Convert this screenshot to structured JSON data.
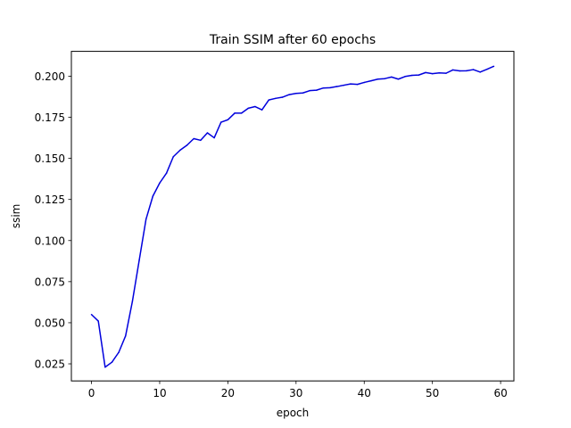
{
  "chart_data": {
    "type": "line",
    "title": "Train SSIM after 60 epochs",
    "xlabel": "epoch",
    "ylabel": "ssim",
    "xlim": [
      -2.95,
      61.95
    ],
    "ylim": [
      0.0146,
      0.2151
    ],
    "x_ticks": [
      0,
      10,
      20,
      30,
      40,
      50,
      60
    ],
    "y_ticks": [
      0.025,
      0.05,
      0.075,
      0.1,
      0.125,
      0.15,
      0.175,
      0.2
    ],
    "y_tick_labels": [
      "0.025",
      "0.050",
      "0.075",
      "0.100",
      "0.125",
      "0.150",
      "0.175",
      "0.200"
    ],
    "x_tick_labels": [
      "0",
      "10",
      "20",
      "30",
      "40",
      "50",
      "60"
    ],
    "grid": false,
    "series": [
      {
        "color": "#0000dd",
        "x": [
          0,
          1,
          2,
          3,
          4,
          5,
          6,
          7,
          8,
          9,
          10,
          11,
          12,
          13,
          14,
          15,
          16,
          17,
          18,
          19,
          20,
          21,
          22,
          23,
          24,
          25,
          26,
          27,
          28,
          29,
          30,
          31,
          32,
          33,
          34,
          35,
          36,
          37,
          38,
          39,
          40,
          41,
          42,
          43,
          44,
          45,
          46,
          47,
          48,
          49,
          50,
          51,
          52,
          53,
          54,
          55,
          56,
          57,
          58,
          59
        ],
        "y": [
          0.055,
          0.051,
          0.023,
          0.026,
          0.032,
          0.042,
          0.063,
          0.088,
          0.113,
          0.127,
          0.135,
          0.141,
          0.151,
          0.155,
          0.158,
          0.162,
          0.161,
          0.1655,
          0.1625,
          0.172,
          0.1735,
          0.1775,
          0.1775,
          0.1805,
          0.1815,
          0.1795,
          0.1855,
          0.1865,
          0.1872,
          0.1888,
          0.1895,
          0.1898,
          0.1912,
          0.1915,
          0.1928,
          0.193,
          0.1937,
          0.1945,
          0.1953,
          0.195,
          0.1962,
          0.1972,
          0.1982,
          0.1985,
          0.1995,
          0.1982,
          0.1998,
          0.2005,
          0.2007,
          0.2022,
          0.2015,
          0.202,
          0.2018,
          0.2038,
          0.2032,
          0.2033,
          0.204,
          0.2025,
          0.2042,
          0.206
        ]
      }
    ]
  }
}
